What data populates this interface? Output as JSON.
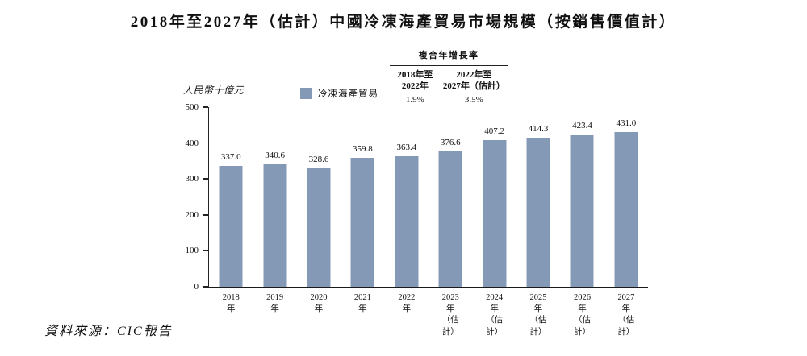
{
  "title": "2018年至2027年（估計）中國冷凍海產貿易市場規模（按銷售價值計）",
  "cagr": {
    "title": "複合年增長率",
    "columns": [
      {
        "period_line1": "2018年至",
        "period_line2": "2022年",
        "value": "1.9%"
      },
      {
        "period_line1": "2022年至",
        "period_line2": "2027年（估計）",
        "value": "3.5%"
      }
    ]
  },
  "legend": {
    "label": "冷凍海產貿易",
    "swatch_color": "#8499B5"
  },
  "y_axis_unit": "人民幣十億元",
  "source": "資料來源：CIC報告",
  "chart_data": {
    "type": "bar",
    "title": "2018年至2027年（估計）中國冷凍海產貿易市場規模（按銷售價值計）",
    "series_name": "冷凍海產貿易",
    "categories": [
      "2018年",
      "2019年",
      "2020年",
      "2021年",
      "2022年",
      "2023年",
      "2024年",
      "2025年",
      "2026年",
      "2027年"
    ],
    "category_sublabels": [
      "",
      "",
      "",
      "",
      "",
      "（估計）",
      "（估計）",
      "（估計）",
      "（估計）",
      "（估計）"
    ],
    "values": [
      337.0,
      340.6,
      328.6,
      359.8,
      363.4,
      376.6,
      407.2,
      414.3,
      423.4,
      431.0
    ],
    "value_label_decimals": 1,
    "xlabel": "",
    "ylabel": "人民幣十億元",
    "ylim": [
      0,
      500
    ],
    "yticks": [
      0,
      100,
      200,
      300,
      400,
      500
    ],
    "bar_color": "#8499B5",
    "axis_color": "#222222",
    "grid": false,
    "legend_position": "top",
    "cagr_annotations": [
      {
        "period": "2018年至2022年",
        "value": "1.9%"
      },
      {
        "period": "2022年至2027年（估計）",
        "value": "3.5%"
      }
    ]
  }
}
